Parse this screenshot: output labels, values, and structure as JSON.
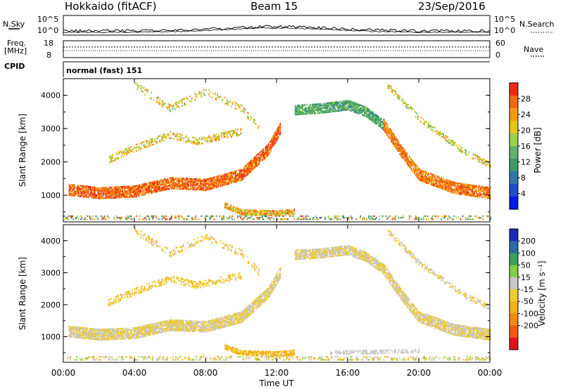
{
  "header": {
    "title": "Hokkaido (fitACF)",
    "beam": "Beam 15",
    "date": "23/Sep/2016"
  },
  "noise_panel": {
    "left_label": "N.Sky",
    "right_label": "N.Search",
    "left_ticks": [
      "10^5",
      "10^0"
    ],
    "right_ticks": [
      "10^5",
      "10^0"
    ]
  },
  "freq_panel": {
    "label_top": "Freq.",
    "label_bottom": "[MHz]",
    "left_ticks": [
      "18",
      "8"
    ],
    "right_label": "Nave",
    "right_ticks": [
      "60",
      "0"
    ]
  },
  "cpid": {
    "label": "CPID",
    "mode": "normal (fast) 151"
  },
  "chart_data": [
    {
      "type": "heatmap",
      "name": "Power",
      "ylabel": "Slant Range [km]",
      "ylim": [
        200,
        4500
      ],
      "yticks": [
        1000,
        2000,
        3000,
        4000
      ],
      "xlim": [
        0,
        24
      ],
      "xtick_labels": [
        "00:00",
        "04:00",
        "08:00",
        "12:00",
        "16:00",
        "20:00",
        "00:00"
      ],
      "colorbar": {
        "label": "Power [dB]",
        "range": [
          0,
          32
        ],
        "ticks": [
          "4",
          "8",
          "12",
          "16",
          "20",
          "24",
          "28"
        ],
        "colors": [
          "#0018e8",
          "#1e4dc8",
          "#2f77a8",
          "#3f9a6a",
          "#5fb36a",
          "#9ad14a",
          "#e6c51c",
          "#f29a12",
          "#f26a12",
          "#ee2a10"
        ]
      },
      "bands": [
        {
          "points": [
            [
              0.3,
              1150
            ],
            [
              2,
              1050
            ],
            [
              4,
              1100
            ],
            [
              6,
              1350
            ],
            [
              8,
              1300
            ],
            [
              10,
              1600
            ],
            [
              11.5,
              2350
            ],
            [
              12.2,
              3000
            ]
          ],
          "width": 330,
          "level": 27,
          "spread": 4,
          "density": 0.85
        },
        {
          "points": [
            [
              2.5,
              2050
            ],
            [
              4,
              2400
            ],
            [
              6,
              2800
            ],
            [
              7.5,
              2600
            ],
            [
              10,
              2900
            ]
          ],
          "width": 200,
          "level": 21,
          "spread": 5,
          "density": 0.45
        },
        {
          "points": [
            [
              4,
              4300
            ],
            [
              6,
              3600
            ],
            [
              8,
              4100
            ],
            [
              10,
              3600
            ],
            [
              11,
              3000
            ]
          ],
          "width": 200,
          "level": 20,
          "spread": 5,
          "density": 0.3
        },
        {
          "points": [
            [
              9,
              700
            ],
            [
              10,
              480
            ],
            [
              12,
              450
            ],
            [
              13,
              500
            ]
          ],
          "width": 160,
          "level": 23,
          "spread": 6,
          "density": 0.8
        },
        {
          "points": [
            [
              13,
              3550
            ],
            [
              14.5,
              3600
            ],
            [
              16,
              3700
            ],
            [
              17,
              3500
            ],
            [
              18,
              3100
            ]
          ],
          "width": 300,
          "level": 13,
          "spread": 4,
          "density": 0.85
        },
        {
          "points": [
            [
              18,
              3100
            ],
            [
              19,
              2300
            ],
            [
              20,
              1600
            ],
            [
              22,
              1200
            ],
            [
              24,
              1050
            ]
          ],
          "width": 330,
          "level": 26,
          "spread": 4,
          "density": 0.85
        },
        {
          "points": [
            [
              18.2,
              4300
            ],
            [
              20,
              3300
            ],
            [
              22.5,
              2300
            ],
            [
              24,
              1900
            ]
          ],
          "width": 160,
          "level": 20,
          "spread": 5,
          "density": 0.45
        },
        {
          "points": [
            [
              0,
              320
            ],
            [
              24,
              320
            ]
          ],
          "width": 120,
          "level": 18,
          "spread": 12,
          "density": 0.3
        }
      ]
    },
    {
      "type": "heatmap",
      "name": "Velocity",
      "ylabel": "Slant Range [km]",
      "xlabel": "Time UT",
      "ylim": [
        200,
        4500
      ],
      "yticks": [
        1000,
        2000,
        3000,
        4000
      ],
      "xlim": [
        0,
        24
      ],
      "xtick_labels": [
        "00:00",
        "04:00",
        "08:00",
        "12:00",
        "16:00",
        "20:00",
        "00:00"
      ],
      "colorbar": {
        "label": "Velocity [m s⁻¹]",
        "range": [
          -250,
          250
        ],
        "ticks": [
          "200",
          "100",
          "50",
          "15",
          "-15",
          "-50",
          "-100",
          "-200"
        ],
        "colors": [
          "#e8101a",
          "#f25a10",
          "#f28a10",
          "#f2b21a",
          "#f0cc30",
          "#c8c8c8",
          "#80d040",
          "#3aa05a",
          "#2a6aa8",
          "#1a2ab8"
        ]
      },
      "bands": [
        {
          "points": [
            [
              0.3,
              1150
            ],
            [
              2,
              1050
            ],
            [
              4,
              1100
            ],
            [
              6,
              1350
            ],
            [
              8,
              1300
            ],
            [
              10,
              1600
            ],
            [
              11.5,
              2350
            ],
            [
              12.2,
              3000
            ]
          ],
          "width": 330,
          "level": 0,
          "spread": 18,
          "density": 0.85
        },
        {
          "points": [
            [
              2.5,
              2050
            ],
            [
              4,
              2400
            ],
            [
              6,
              2800
            ],
            [
              7.5,
              2600
            ],
            [
              10,
              2900
            ]
          ],
          "width": 200,
          "level": -40,
          "spread": 40,
          "density": 0.4
        },
        {
          "points": [
            [
              4,
              4300
            ],
            [
              6,
              3600
            ],
            [
              8,
              4100
            ],
            [
              10,
              3600
            ],
            [
              11,
              3000
            ]
          ],
          "width": 200,
          "level": -30,
          "spread": 50,
          "density": 0.3
        },
        {
          "points": [
            [
              9,
              700
            ],
            [
              10,
              480
            ],
            [
              12,
              450
            ],
            [
              13,
              500
            ]
          ],
          "width": 160,
          "level": -60,
          "spread": 20,
          "density": 0.8
        },
        {
          "points": [
            [
              13,
              3550
            ],
            [
              14.5,
              3600
            ],
            [
              16,
              3700
            ],
            [
              17,
              3500
            ],
            [
              18,
              3100
            ]
          ],
          "width": 300,
          "level": 0,
          "spread": 18,
          "density": 0.85
        },
        {
          "points": [
            [
              18,
              3100
            ],
            [
              19,
              2300
            ],
            [
              20,
              1600
            ],
            [
              22,
              1200
            ],
            [
              24,
              1050
            ]
          ],
          "width": 330,
          "level": 0,
          "spread": 18,
          "density": 0.85
        },
        {
          "points": [
            [
              18.2,
              4300
            ],
            [
              20,
              3300
            ],
            [
              22.5,
              2300
            ],
            [
              24,
              1900
            ]
          ],
          "width": 160,
          "level": 0,
          "spread": 30,
          "density": 0.45
        },
        {
          "points": [
            [
              15,
              500
            ],
            [
              18,
              520
            ],
            [
              20,
              560
            ]
          ],
          "width": 120,
          "level": 30,
          "spread": 12,
          "density": 0.5
        },
        {
          "points": [
            [
              0,
              320
            ],
            [
              24,
              320
            ]
          ],
          "width": 120,
          "level": 0,
          "spread": 80,
          "density": 0.3
        }
      ]
    }
  ]
}
